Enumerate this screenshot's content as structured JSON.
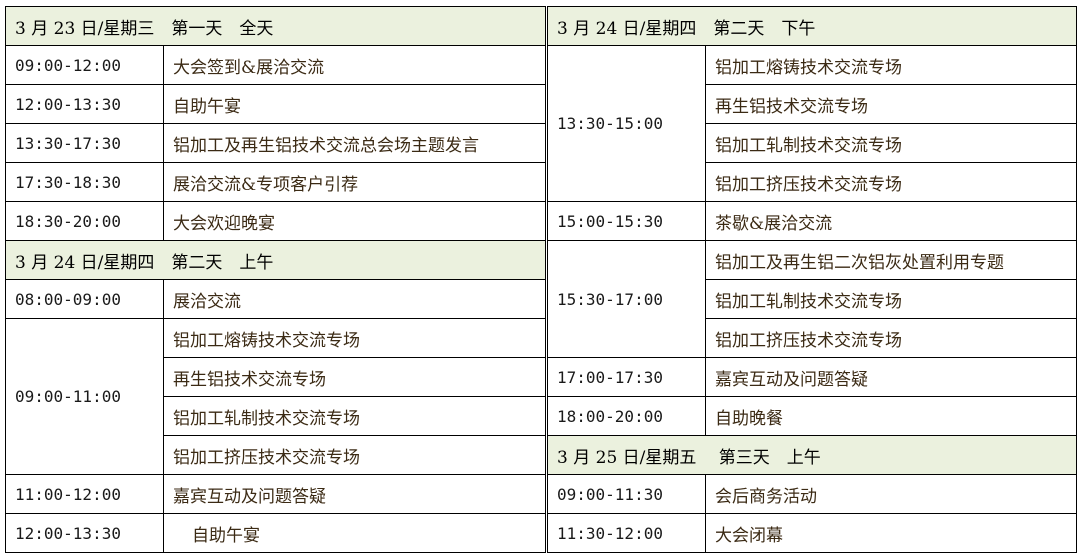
{
  "left": {
    "h1": "3 月 23 日/星期三　第一天　全天",
    "d1": [
      {
        "time": "09:00-12:00",
        "item": "大会签到&展洽交流"
      },
      {
        "time": "12:00-13:30",
        "item": "自助午宴"
      },
      {
        "time": "13:30-17:30",
        "item": "铝加工及再生铝技术交流总会场主题发言"
      },
      {
        "time": "17:30-18:30",
        "item": "展洽交流&专项客户引荐"
      },
      {
        "time": "18:30-20:00",
        "item": "大会欢迎晚宴"
      }
    ],
    "h2": "3 月 24 日/星期四　第二天　上午",
    "d2": [
      {
        "time": "08:00-09:00",
        "item": "展洽交流"
      }
    ],
    "g": {
      "time": "09:00-11:00",
      "items": [
        "铝加工熔铸技术交流专场",
        "再生铝技术交流专场",
        "铝加工轧制技术交流专场",
        "铝加工挤压技术交流专场"
      ]
    },
    "d3": [
      {
        "time": "11:00-12:00",
        "item": "嘉宾互动及问题答疑"
      },
      {
        "time": "12:00-13:30",
        "item": "自助午宴"
      }
    ]
  },
  "right": {
    "h1": "3 月 24 日/星期四　第二天　下午",
    "g1": {
      "time": "13:30-15:00",
      "items": [
        "铝加工熔铸技术交流专场",
        "再生铝技术交流专场",
        "铝加工轧制技术交流专场",
        "铝加工挤压技术交流专场"
      ]
    },
    "d1": {
      "time": "15:00-15:30",
      "item": "茶歇&展洽交流"
    },
    "g2": {
      "time": "15:30-17:00",
      "items": [
        "铝加工及再生铝二次铝灰处置利用专题",
        "铝加工轧制技术交流专场",
        "铝加工挤压技术交流专场"
      ]
    },
    "d2": [
      {
        "time": "17:00-17:30",
        "item": "嘉宾互动及问题答疑"
      },
      {
        "time": "18:00-20:00",
        "item": "自助晚餐"
      }
    ],
    "h2": "3 月 25 日/星期五　 第三天　上午",
    "d3": [
      {
        "time": "09:00-11:30",
        "item": "会后商务活动"
      },
      {
        "time": "11:30-12:00",
        "item": "大会闭幕"
      }
    ]
  }
}
